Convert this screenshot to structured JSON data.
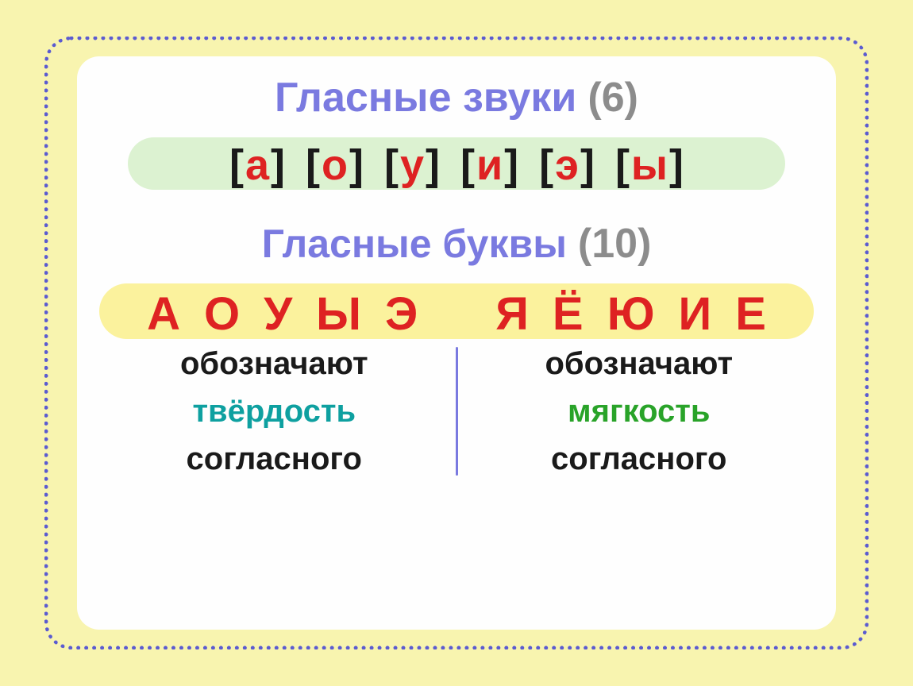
{
  "colors": {
    "outer_bg": "#f8f4af",
    "dotted_border": "#5b5bd0",
    "inner_bg": "#fefefe",
    "heading_main": "#7a7ae0",
    "heading_count": "#8c8c8c",
    "green_pill": "#dcf2d1",
    "yellow_pill": "#fbf29d",
    "black": "#1a1a1a",
    "red": "#de2222",
    "hard_word": "#0ea0a0",
    "soft_word": "#29a329",
    "divider": "#7a7ae0"
  },
  "sounds": {
    "title": "Гласные звуки",
    "count": "(6)",
    "items": [
      "а",
      "о",
      "у",
      "и",
      "э",
      "ы"
    ]
  },
  "letters": {
    "title": "Гласные буквы",
    "count": "(10)",
    "hard": [
      "А",
      "О",
      "У",
      "Ы",
      "Э"
    ],
    "soft": [
      "Я",
      "Ё",
      "Ю",
      "И",
      "Е"
    ]
  },
  "labels": {
    "denote": "обозначают",
    "hardness": "твёрдость",
    "softness": "мягкость",
    "of_consonant": "согласного"
  },
  "typography": {
    "heading_fontsize": 52,
    "sound_fontsize": 54,
    "letter_fontsize": 58,
    "label_fontsize": 40
  }
}
